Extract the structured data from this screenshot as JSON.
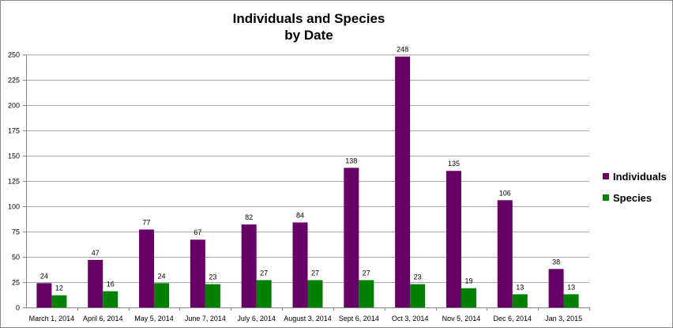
{
  "chart_data": {
    "type": "bar",
    "title_line1": "Individuals and Species",
    "title_line2": "by Date",
    "xlabel": "",
    "ylabel": "",
    "ylim": [
      0,
      250
    ],
    "yticks": [
      0,
      25,
      50,
      75,
      100,
      125,
      150,
      175,
      200,
      225,
      250
    ],
    "grid": true,
    "legend_position": "right",
    "categories": [
      "March 1, 2014",
      "April 6, 2014",
      "May 5, 2014",
      "June 7, 2014",
      "July 6, 2014",
      "August 3, 2014",
      "Sept 6, 2014",
      "Oct 3, 2014",
      "Nov 5, 2014",
      "Dec 6, 2014",
      "Jan 3, 2015"
    ],
    "series": [
      {
        "name": "Individuals",
        "color": "#660066",
        "values": [
          24,
          47,
          77,
          67,
          82,
          84,
          138,
          248,
          135,
          106,
          38
        ]
      },
      {
        "name": "Species",
        "color": "#008000",
        "values": [
          12,
          16,
          24,
          23,
          27,
          27,
          27,
          23,
          19,
          13,
          13
        ]
      }
    ]
  }
}
